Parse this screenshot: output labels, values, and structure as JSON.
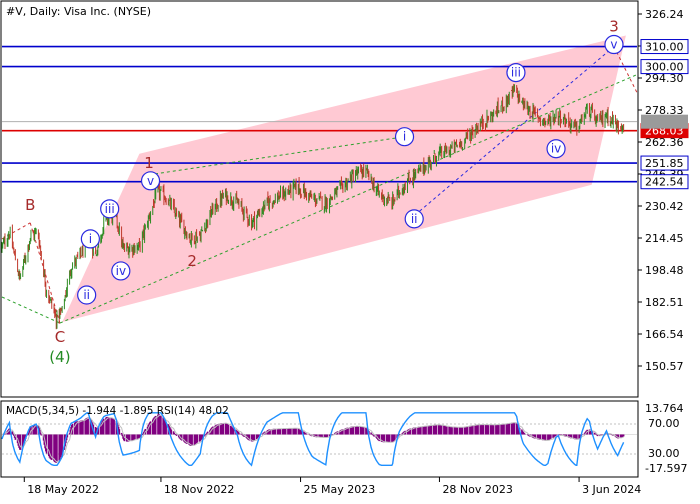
{
  "chart_data": [
    {
      "type": "candlestick",
      "title": "#V, Daily:  Visa Inc. (NYSE)",
      "ylim": [
        150.57,
        326.24
      ],
      "y_ticks": [
        "326.24",
        "310.28",
        "294.30",
        "278.33",
        "262.36",
        "246.39",
        "230.42",
        "214.45",
        "198.48",
        "182.51",
        "166.54",
        "150.57"
      ],
      "x_ticks": [
        "18 May 2022",
        "18 Nov 2022",
        "25 May 2023",
        "28 Nov 2023",
        "3 Jun 2024"
      ],
      "x_tick_dates": [
        "2022-05-18",
        "2022-11-18",
        "2023-05-25",
        "2023-11-28",
        "2024-06-03"
      ],
      "x_range": [
        "2022-04-18",
        "2024-08-20"
      ],
      "horizontal_levels": [
        {
          "price": 310.0,
          "label": "310.00",
          "color": "#0000cc"
        },
        {
          "price": 300.0,
          "label": "300.00",
          "color": "#0000cc"
        },
        {
          "price": 268.03,
          "label": "268.03",
          "color": "#dd0000"
        },
        {
          "price": 251.85,
          "label": "251.85",
          "color": "#0000cc"
        },
        {
          "price": 242.54,
          "label": "242.54",
          "color": "#0000cc"
        }
      ],
      "current_price": 272.5,
      "channel": {
        "color": "#ffc0cb",
        "corners": [
          {
            "date": "2022-10-20",
            "price": 256.5
          },
          {
            "date": "2024-08-05",
            "price": 315.5
          },
          {
            "date": "2024-06-20",
            "price": 241.0
          },
          {
            "date": "2022-07-08",
            "price": 172.5
          }
        ]
      },
      "close_path": [
        {
          "date": "2022-04-18",
          "price": 210
        },
        {
          "date": "2022-04-28",
          "price": 217
        },
        {
          "date": "2022-05-12",
          "price": 194
        },
        {
          "date": "2022-05-26",
          "price": 215
        },
        {
          "date": "2022-06-05",
          "price": 218
        },
        {
          "date": "2022-06-16",
          "price": 190
        },
        {
          "date": "2022-06-30",
          "price": 174
        },
        {
          "date": "2022-07-08",
          "price": 178
        },
        {
          "date": "2022-07-20",
          "price": 200
        },
        {
          "date": "2022-08-02",
          "price": 206
        },
        {
          "date": "2022-08-12",
          "price": 214
        },
        {
          "date": "2022-08-22",
          "price": 206
        },
        {
          "date": "2022-09-03",
          "price": 223
        },
        {
          "date": "2022-09-18",
          "price": 226
        },
        {
          "date": "2022-09-28",
          "price": 209
        },
        {
          "date": "2022-10-20",
          "price": 210
        },
        {
          "date": "2022-11-02",
          "price": 225
        },
        {
          "date": "2022-11-14",
          "price": 238
        },
        {
          "date": "2022-11-26",
          "price": 234
        },
        {
          "date": "2022-12-10",
          "price": 225
        },
        {
          "date": "2022-12-28",
          "price": 214
        },
        {
          "date": "2023-01-10",
          "price": 216
        },
        {
          "date": "2023-01-26",
          "price": 228
        },
        {
          "date": "2023-02-12",
          "price": 236
        },
        {
          "date": "2023-03-01",
          "price": 232
        },
        {
          "date": "2023-03-20",
          "price": 222
        },
        {
          "date": "2023-04-10",
          "price": 232
        },
        {
          "date": "2023-04-30",
          "price": 236
        },
        {
          "date": "2023-05-20",
          "price": 240
        },
        {
          "date": "2023-06-10",
          "price": 234
        },
        {
          "date": "2023-06-28",
          "price": 232
        },
        {
          "date": "2023-07-20",
          "price": 240
        },
        {
          "date": "2023-08-05",
          "price": 246
        },
        {
          "date": "2023-08-20",
          "price": 248
        },
        {
          "date": "2023-09-08",
          "price": 236
        },
        {
          "date": "2023-09-25",
          "price": 232
        },
        {
          "date": "2023-10-05",
          "price": 238
        },
        {
          "date": "2023-10-20",
          "price": 244
        },
        {
          "date": "2023-11-08",
          "price": 250
        },
        {
          "date": "2023-11-25",
          "price": 256
        },
        {
          "date": "2023-12-10",
          "price": 258
        },
        {
          "date": "2023-12-28",
          "price": 262
        },
        {
          "date": "2024-01-18",
          "price": 270
        },
        {
          "date": "2024-02-08",
          "price": 276
        },
        {
          "date": "2024-02-24",
          "price": 282
        },
        {
          "date": "2024-03-08",
          "price": 288
        },
        {
          "date": "2024-03-20",
          "price": 281
        },
        {
          "date": "2024-04-05",
          "price": 276
        },
        {
          "date": "2024-04-20",
          "price": 272
        },
        {
          "date": "2024-05-05",
          "price": 276
        },
        {
          "date": "2024-05-20",
          "price": 272
        },
        {
          "date": "2024-05-31",
          "price": 269
        },
        {
          "date": "2024-06-15",
          "price": 279
        },
        {
          "date": "2024-06-28",
          "price": 272
        },
        {
          "date": "2024-07-10",
          "price": 276
        },
        {
          "date": "2024-07-25",
          "price": 270
        },
        {
          "date": "2024-08-02",
          "price": 272
        }
      ],
      "wave_labels": [
        {
          "text": "B",
          "date": "2022-05-26",
          "price": 231,
          "style": "plain",
          "color": "#a52a2a"
        },
        {
          "text": "C",
          "date": "2022-07-05",
          "price": 165,
          "style": "plain",
          "color": "#a52a2a"
        },
        {
          "text": "(4)",
          "date": "2022-07-05",
          "price": 155,
          "style": "plain",
          "color": "#228b22"
        },
        {
          "text": "i",
          "date": "2022-08-15",
          "price": 214,
          "style": "circle",
          "color": "#2a2ae0"
        },
        {
          "text": "ii",
          "date": "2022-08-10",
          "price": 186,
          "style": "circle",
          "color": "#2a2ae0"
        },
        {
          "text": "iii",
          "date": "2022-09-10",
          "price": 229,
          "style": "circle",
          "color": "#2a2ae0"
        },
        {
          "text": "iv",
          "date": "2022-09-25",
          "price": 198,
          "style": "circle",
          "color": "#2a2ae0"
        },
        {
          "text": "1",
          "date": "2022-11-02",
          "price": 252,
          "style": "plain",
          "color": "#a52a2a"
        },
        {
          "text": "v",
          "date": "2022-11-04",
          "price": 243,
          "style": "circle",
          "color": "#2a2ae0"
        },
        {
          "text": "2",
          "date": "2022-12-30",
          "price": 203,
          "style": "plain",
          "color": "#a52a2a"
        },
        {
          "text": "i",
          "date": "2023-10-12",
          "price": 265,
          "style": "circle",
          "color": "#2a2ae0"
        },
        {
          "text": "ii",
          "date": "2023-10-25",
          "price": 224,
          "style": "circle",
          "color": "#2a2ae0"
        },
        {
          "text": "iii",
          "date": "2024-03-10",
          "price": 297,
          "style": "circle",
          "color": "#2a2ae0"
        },
        {
          "text": "iv",
          "date": "2024-05-03",
          "price": 259,
          "style": "circle",
          "color": "#2a2ae0"
        },
        {
          "text": "v",
          "date": "2024-07-20",
          "price": 311,
          "style": "circle",
          "color": "#2a2ae0"
        },
        {
          "text": "3",
          "date": "2024-07-20",
          "price": 320,
          "style": "plain",
          "color": "#a52a2a"
        }
      ],
      "trend_lines": [
        {
          "style": "dashed",
          "color": "#2ca02c",
          "from": {
            "date": "2022-04-18",
            "price": 185
          },
          "to": {
            "date": "2022-07-05",
            "price": 172
          }
        },
        {
          "style": "dashed",
          "color": "#cc3333",
          "from": {
            "date": "2022-04-18",
            "price": 214
          },
          "to": {
            "date": "2022-05-26",
            "price": 222
          }
        },
        {
          "style": "dashed",
          "color": "#cc3333",
          "from": {
            "date": "2022-05-26",
            "price": 222
          },
          "to": {
            "date": "2022-07-05",
            "price": 172
          }
        },
        {
          "style": "dashed",
          "color": "#2ca02c",
          "from": {
            "date": "2022-07-05",
            "price": 172
          },
          "to": {
            "date": "2024-08-20",
            "price": 296
          }
        },
        {
          "style": "dashed",
          "color": "#2ca02c",
          "from": {
            "date": "2022-11-02",
            "price": 246
          },
          "to": {
            "date": "2023-10-12",
            "price": 265
          }
        },
        {
          "style": "dashed",
          "color": "#2a2ae0",
          "from": {
            "date": "2023-10-20",
            "price": 224
          },
          "to": {
            "date": "2024-07-20",
            "price": 310
          }
        },
        {
          "style": "dashed",
          "color": "#cc3333",
          "from": {
            "date": "2024-07-20",
            "price": 310
          },
          "to": {
            "date": "2024-08-20",
            "price": 287
          }
        }
      ]
    },
    {
      "type": "bar",
      "title": "MACD(5,34,5) -1.944 -1.895 RSI(14) 48.02",
      "macd_value": -1.944,
      "signal_value": -1.895,
      "rsi_value": 48.02,
      "macd_axis": {
        "top": "13.764",
        "bottom": "-17.597",
        "top_value": 13.764,
        "bottom_value": -17.597
      },
      "rsi_levels": [
        {
          "label": "70.00",
          "value": 70
        },
        {
          "label": "30.00",
          "value": 30
        }
      ],
      "macd_color": "#800080",
      "rsi_color": "#1e90ff",
      "signal_color": "#c0c0c0"
    }
  ]
}
